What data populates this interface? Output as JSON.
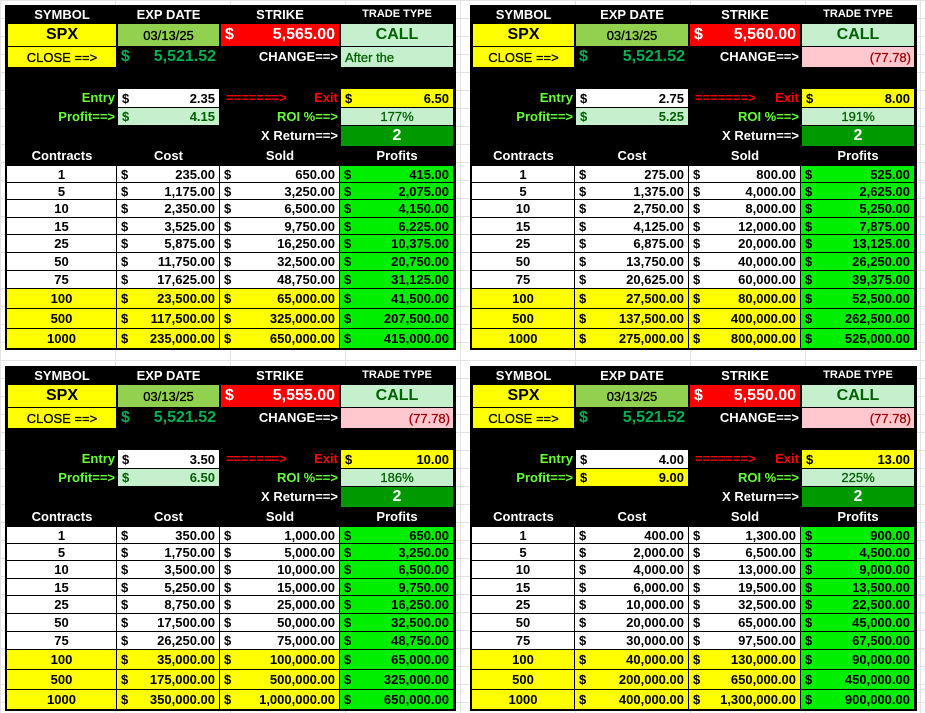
{
  "headers": {
    "symbol": "SYMBOL",
    "exp_date": "EXP DATE",
    "strike": "STRIKE",
    "trade_type": "TRADE TYPE",
    "close_label": "CLOSE ==>",
    "change_label": "CHANGE==>",
    "entry_label": "Entry",
    "arrow": "=======>",
    "exit_label": "Exit",
    "profit_label": "Profit==>",
    "roi_label": "ROI %==>",
    "xreturn_label": "X Return==>",
    "col_contracts": "Contracts",
    "col_cost": "Cost",
    "col_sold": "Sold",
    "col_profits": "Profits",
    "currency": "$"
  },
  "colors": {
    "symbol_bg": "#ffff00",
    "date_bg": "#92d050",
    "strike_bg": "#ff0000",
    "call_bg": "#c6efce",
    "profits_bg": "#00ee00",
    "xreturn_bg": "#009900"
  },
  "panels": [
    {
      "symbol": "SPX",
      "exp_date": "03/13/25",
      "strike": "5,565.00",
      "trade_type": "CALL",
      "close": "5,521.52",
      "change": "After the",
      "change_is_note": true,
      "entry": "2.35",
      "exit": "6.50",
      "profit": "4.15",
      "profit_highlight": false,
      "roi": "177%",
      "x_return": "2",
      "rows": [
        [
          "1",
          "235.00",
          "650.00",
          "415.00"
        ],
        [
          "5",
          "1,175.00",
          "3,250.00",
          "2,075.00"
        ],
        [
          "10",
          "2,350.00",
          "6,500.00",
          "4,150.00"
        ],
        [
          "15",
          "3,525.00",
          "9,750.00",
          "6,225.00"
        ],
        [
          "25",
          "5,875.00",
          "16,250.00",
          "10,375.00"
        ],
        [
          "50",
          "11,750.00",
          "32,500.00",
          "20,750.00"
        ],
        [
          "75",
          "17,625.00",
          "48,750.00",
          "31,125.00"
        ],
        [
          "100",
          "23,500.00",
          "65,000.00",
          "41,500.00"
        ],
        [
          "500",
          "117,500.00",
          "325,000.00",
          "207,500.00"
        ],
        [
          "1000",
          "235,000.00",
          "650,000.00",
          "415,000.00"
        ]
      ]
    },
    {
      "symbol": "SPX",
      "exp_date": "03/13/25",
      "strike": "5,560.00",
      "trade_type": "CALL",
      "close": "5,521.52",
      "change": "(77.78)",
      "change_is_note": false,
      "entry": "2.75",
      "exit": "8.00",
      "profit": "5.25",
      "profit_highlight": false,
      "roi": "191%",
      "x_return": "2",
      "rows": [
        [
          "1",
          "275.00",
          "800.00",
          "525.00"
        ],
        [
          "5",
          "1,375.00",
          "4,000.00",
          "2,625.00"
        ],
        [
          "10",
          "2,750.00",
          "8,000.00",
          "5,250.00"
        ],
        [
          "15",
          "4,125.00",
          "12,000.00",
          "7,875.00"
        ],
        [
          "25",
          "6,875.00",
          "20,000.00",
          "13,125.00"
        ],
        [
          "50",
          "13,750.00",
          "40,000.00",
          "26,250.00"
        ],
        [
          "75",
          "20,625.00",
          "60,000.00",
          "39,375.00"
        ],
        [
          "100",
          "27,500.00",
          "80,000.00",
          "52,500.00"
        ],
        [
          "500",
          "137,500.00",
          "400,000.00",
          "262,500.00"
        ],
        [
          "1000",
          "275,000.00",
          "800,000.00",
          "525,000.00"
        ]
      ]
    },
    {
      "symbol": "SPX",
      "exp_date": "03/13/25",
      "strike": "5,555.00",
      "trade_type": "CALL",
      "close": "5,521.52",
      "change": "(77.78)",
      "change_is_note": false,
      "entry": "3.50",
      "exit": "10.00",
      "profit": "6.50",
      "profit_highlight": false,
      "roi": "186%",
      "x_return": "2",
      "rows": [
        [
          "1",
          "350.00",
          "1,000.00",
          "650.00"
        ],
        [
          "5",
          "1,750.00",
          "5,000.00",
          "3,250.00"
        ],
        [
          "10",
          "3,500.00",
          "10,000.00",
          "6,500.00"
        ],
        [
          "15",
          "5,250.00",
          "15,000.00",
          "9,750.00"
        ],
        [
          "25",
          "8,750.00",
          "25,000.00",
          "16,250.00"
        ],
        [
          "50",
          "17,500.00",
          "50,000.00",
          "32,500.00"
        ],
        [
          "75",
          "26,250.00",
          "75,000.00",
          "48,750.00"
        ],
        [
          "100",
          "35,000.00",
          "100,000.00",
          "65,000.00"
        ],
        [
          "500",
          "175,000.00",
          "500,000.00",
          "325,000.00"
        ],
        [
          "1000",
          "350,000.00",
          "1,000,000.00",
          "650,000.00"
        ]
      ]
    },
    {
      "symbol": "SPX",
      "exp_date": "03/13/25",
      "strike": "5,550.00",
      "trade_type": "CALL",
      "close": "5,521.52",
      "change": "(77.78)",
      "change_is_note": false,
      "entry": "4.00",
      "exit": "13.00",
      "profit": "9.00",
      "profit_highlight": true,
      "roi": "225%",
      "x_return": "2",
      "rows": [
        [
          "1",
          "400.00",
          "1,300.00",
          "900.00"
        ],
        [
          "5",
          "2,000.00",
          "6,500.00",
          "4,500.00"
        ],
        [
          "10",
          "4,000.00",
          "13,000.00",
          "9,000.00"
        ],
        [
          "15",
          "6,000.00",
          "19,500.00",
          "13,500.00"
        ],
        [
          "25",
          "10,000.00",
          "32,500.00",
          "22,500.00"
        ],
        [
          "50",
          "20,000.00",
          "65,000.00",
          "45,000.00"
        ],
        [
          "75",
          "30,000.00",
          "97,500.00",
          "67,500.00"
        ],
        [
          "100",
          "40,000.00",
          "130,000.00",
          "90,000.00"
        ],
        [
          "500",
          "200,000.00",
          "650,000.00",
          "450,000.00"
        ],
        [
          "1000",
          "400,000.00",
          "1,300,000.00",
          "900,000.00"
        ]
      ]
    }
  ]
}
